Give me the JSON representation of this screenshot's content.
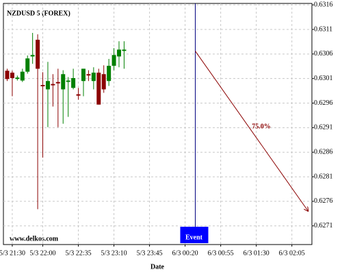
{
  "chart_data": {
    "type": "candlestick",
    "title": "NZDUSD 5 (FOREX)",
    "x_label": "Date",
    "watermark": "www.delkos.com",
    "x": [
      -5,
      0,
      5,
      10,
      15,
      20,
      25,
      30,
      35,
      40,
      45,
      50,
      55,
      60,
      65,
      70,
      75,
      80,
      85,
      90,
      95,
      100,
      105,
      110
    ],
    "open": [
      0.63026,
      0.63022,
      0.6301,
      0.63006,
      0.63024,
      0.63055,
      0.63089,
      0.62997,
      0.62988,
      0.62999,
      0.63003,
      0.62988,
      0.63004,
      0.62991,
      0.62978,
      0.63005,
      0.63019,
      0.63005,
      0.63022,
      0.63019,
      0.63005,
      0.63036,
      0.63055,
      0.63068
    ],
    "high": [
      0.6303,
      0.63026,
      0.63016,
      0.6303,
      0.63057,
      0.63103,
      0.631,
      0.63023,
      0.63044,
      0.63019,
      0.6303,
      0.63027,
      0.63013,
      0.6303,
      0.62991,
      0.6303,
      0.63027,
      0.63033,
      0.6303,
      0.63037,
      0.6305,
      0.63072,
      0.63086,
      0.63086
    ],
    "low": [
      0.63005,
      0.62974,
      0.63006,
      0.63003,
      0.6302,
      0.6304,
      0.62744,
      0.62849,
      0.62911,
      0.62953,
      0.62911,
      0.62918,
      0.62932,
      0.62988,
      0.62967,
      0.62974,
      0.63005,
      0.62988,
      0.62957,
      0.62981,
      0.62995,
      0.63027,
      0.63033,
      0.6303
    ],
    "close": [
      0.63009,
      0.63011,
      0.63012,
      0.63024,
      0.63051,
      0.63058,
      0.6303,
      0.62995,
      0.63005,
      0.62997,
      0.63001,
      0.63019,
      0.63006,
      0.63011,
      0.62977,
      0.6303,
      0.63018,
      0.63022,
      0.62957,
      0.62988,
      0.63036,
      0.63058,
      0.63069,
      0.63069
    ],
    "up_color": "#008000",
    "down_color": "#8b0000",
    "xlim": [
      -8.7,
      294.7
    ],
    "ylim": [
      0.62672,
      0.63163
    ],
    "xticks": [
      {
        "value": 0,
        "label": "5/3 21:30"
      },
      {
        "value": 30,
        "label": "5/3 22:00"
      },
      {
        "value": 65,
        "label": "5/3 22:35"
      },
      {
        "value": 100,
        "label": "5/3 23:10"
      },
      {
        "value": 135,
        "label": "5/3 23:45"
      },
      {
        "value": 170,
        "label": "6/3 00:20"
      },
      {
        "value": 205,
        "label": "6/3 00:55"
      },
      {
        "value": 240,
        "label": "6/3 01:30"
      },
      {
        "value": 275,
        "label": "6/3 02:05"
      }
    ],
    "yticks": [
      0.6271,
      0.6276,
      0.6281,
      0.6286,
      0.6291,
      0.6296,
      0.6301,
      0.6306,
      0.6311,
      0.6316
    ],
    "grid": true,
    "event": {
      "x": 180,
      "label": "Event",
      "color": "#0000ff"
    },
    "projection": {
      "x": [
        180,
        291
      ],
      "y": [
        0.63066,
        0.6274
      ],
      "label": "75.0%",
      "color": "#8b0000"
    }
  }
}
